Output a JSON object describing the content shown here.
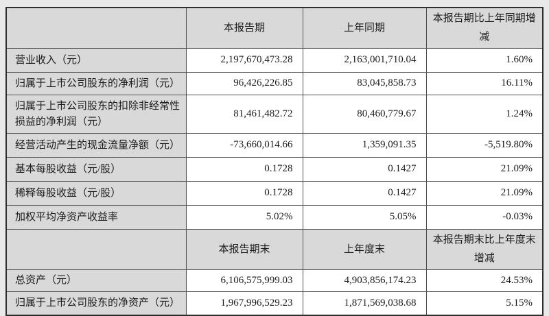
{
  "colors": {
    "cell_gray": "#d9d9d9",
    "border_dark": "#2e2e2e",
    "border_inner": "#4f4f4f",
    "text": "#1b1b1b",
    "value_bg": "#ffffff"
  },
  "section1": {
    "col_headers": {
      "current": "本报告期",
      "prior": "上年同期",
      "change": "本报告期比上年同期增减"
    },
    "rows": [
      {
        "label": "营业收入（元）",
        "current": "2,197,670,473.28",
        "prior": "2,163,001,710.04",
        "change": "1.60%"
      },
      {
        "label": "归属于上市公司股东的净利润（元）",
        "current": "96,426,226.85",
        "prior": "83,045,858.73",
        "change": "16.11%"
      },
      {
        "label": "归属于上市公司股东的扣除非经常性损益的净利润（元）",
        "current": "81,461,482.72",
        "prior": "80,460,779.67",
        "change": "1.24%"
      },
      {
        "label": "经营活动产生的现金流量净额（元）",
        "current": "-73,660,014.66",
        "prior": "1,359,091.35",
        "change": "-5,519.80%"
      },
      {
        "label": "基本每股收益（元/股）",
        "current": "0.1728",
        "prior": "0.1427",
        "change": "21.09%"
      },
      {
        "label": "稀释每股收益（元/股）",
        "current": "0.1728",
        "prior": "0.1427",
        "change": "21.09%"
      },
      {
        "label": "加权平均净资产收益率",
        "current": "5.02%",
        "prior": "5.05%",
        "change": "-0.03%"
      }
    ]
  },
  "section2": {
    "col_headers": {
      "current": "本报告期末",
      "prior": "上年度末",
      "change": "本报告期末比上年度末增减"
    },
    "rows": [
      {
        "label": "总资产（元）",
        "current": "6,106,575,999.03",
        "prior": "4,903,856,174.23",
        "change": "24.53%"
      },
      {
        "label": "归属于上市公司股东的净资产（元）",
        "current": "1,967,996,529.23",
        "prior": "1,871,569,038.68",
        "change": "5.15%"
      }
    ]
  }
}
